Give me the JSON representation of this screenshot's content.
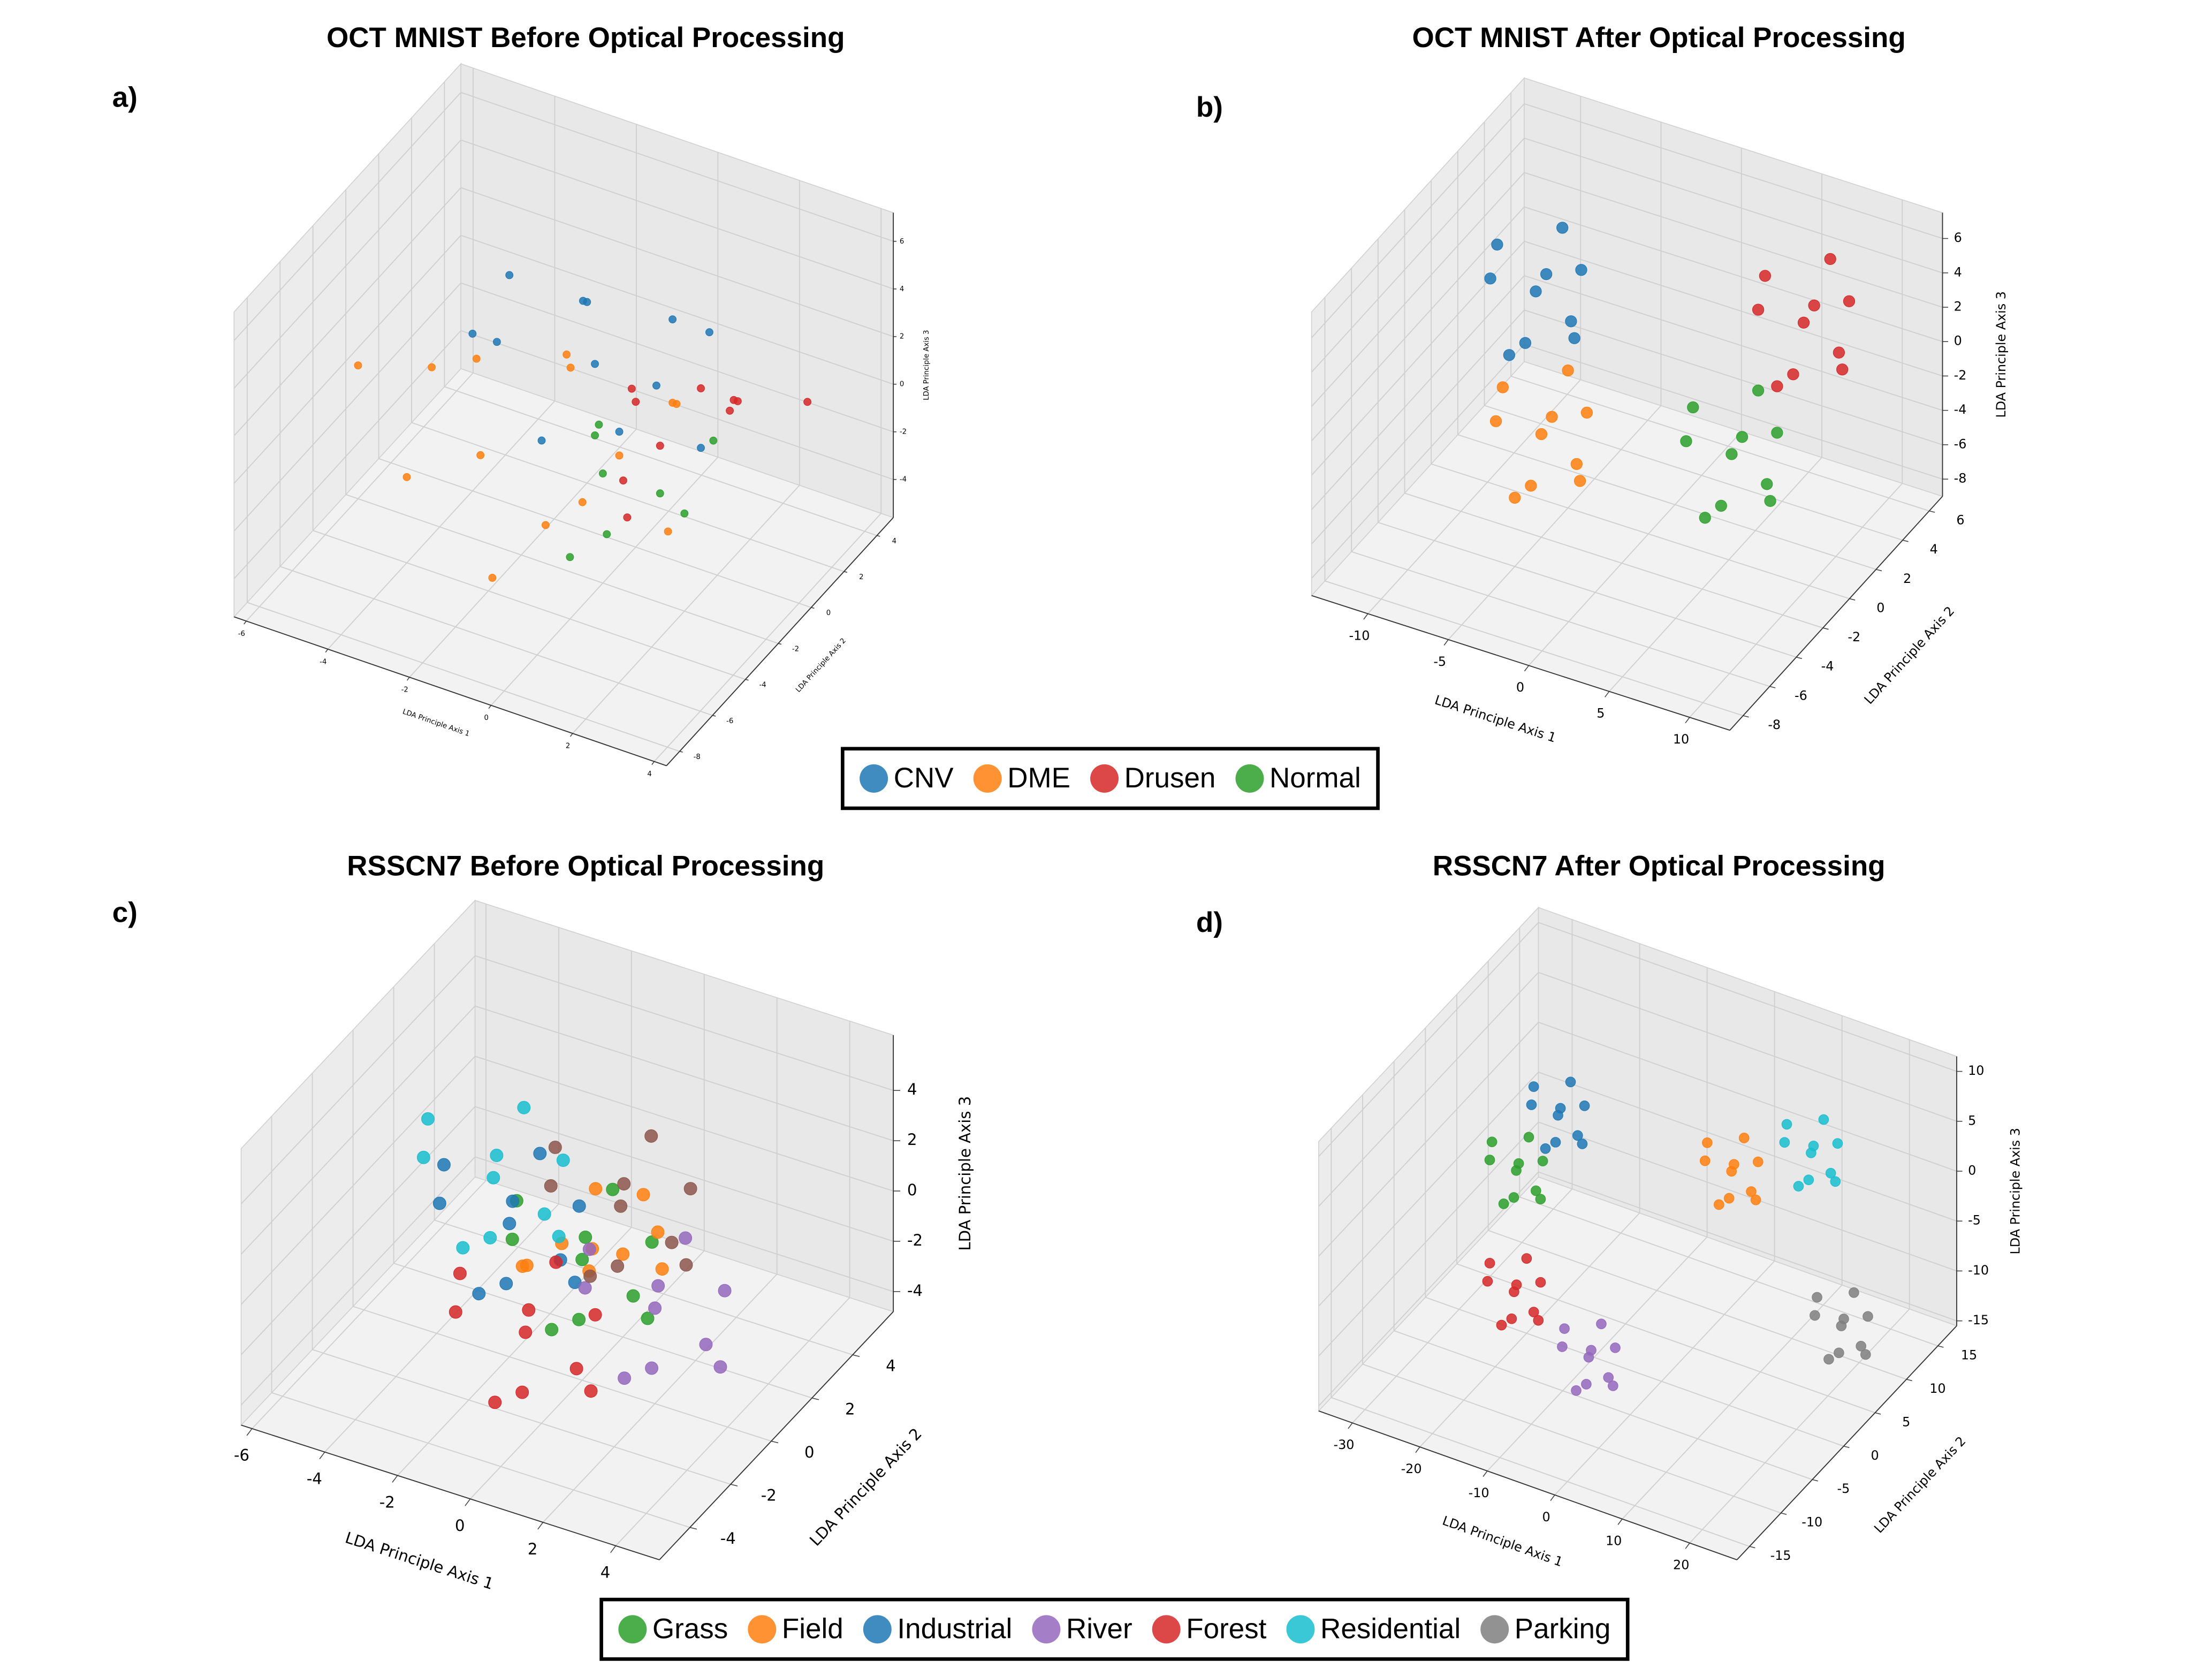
{
  "chart_data": [
    {
      "type": "scatter3d",
      "panel": "a)",
      "title": "OCT MNIST Before Optical Processing",
      "xlabel": "LDA Principle Axis 1",
      "ylabel": "LDA Principle Axis 2",
      "zlabel": "LDA Principle Axis 3",
      "xlim": [
        -6.3,
        4.3
      ],
      "ylim": [
        -8.8,
        5
      ],
      "zlim": [
        -5.6,
        7.2
      ],
      "xticks": [
        -6,
        -4,
        -2,
        0,
        2,
        4
      ],
      "yticks": [
        -8,
        -6,
        -4,
        -2,
        0,
        2,
        4
      ],
      "zticks": [
        -4,
        -2,
        0,
        2,
        4,
        6
      ],
      "grid": true,
      "series": [
        {
          "color": "#1f77b4",
          "x": [
            -3.5,
            -2,
            -1,
            0,
            1,
            -2.5,
            -1.5,
            0.5,
            -4,
            2,
            -0.5,
            -3
          ],
          "y": [
            1,
            2,
            0,
            -1,
            2,
            3,
            -2,
            1,
            0,
            -1,
            2.5,
            -1
          ],
          "z": [
            3,
            2,
            1.5,
            0,
            2.5,
            1,
            -0.5,
            3.5,
            1,
            0.5,
            -1,
            2
          ]
        },
        {
          "color": "#ff7f0e",
          "x": [
            -5,
            -3,
            -2,
            -1,
            0,
            1,
            -4,
            -2.5,
            -0.5,
            0.5,
            -3.5,
            2,
            -1.5,
            -6
          ],
          "y": [
            0,
            -2,
            1,
            -3,
            -1,
            0,
            -4,
            2,
            -2,
            1,
            -1,
            -3,
            -5,
            -2
          ],
          "z": [
            -1,
            -2,
            0,
            -3,
            -1,
            1,
            -2,
            -0.5,
            -2.5,
            0,
            1,
            -1.5,
            -4,
            0
          ]
        },
        {
          "color": "#d62728",
          "x": [
            0,
            1,
            2,
            1.5,
            0.5,
            2.5,
            3,
            1,
            -0.5,
            2
          ],
          "y": [
            0,
            -1,
            1,
            2,
            -2,
            0,
            3,
            -3,
            1,
            -1
          ],
          "z": [
            0.5,
            0,
            1,
            -0.5,
            -1,
            2,
            0,
            -1.5,
            0,
            3
          ]
        },
        {
          "color": "#2ca02c",
          "x": [
            0,
            1,
            -1,
            0.5,
            1.5,
            -0.5,
            2,
            0
          ],
          "y": [
            -2,
            -1,
            0,
            -3,
            1,
            -1,
            -2,
            -4
          ],
          "z": [
            -1,
            -2,
            -1.5,
            -2.5,
            -1,
            0,
            -1.5,
            -3
          ]
        }
      ]
    },
    {
      "type": "scatter3d",
      "panel": "b)",
      "title": "OCT MNIST After Optical Processing",
      "xlabel": "LDA Principle Axis 1",
      "ylabel": "LDA Principle Axis 2",
      "zlabel": "LDA Principle Axis 3",
      "xlim": [
        -13.5,
        12.5
      ],
      "ylim": [
        -9,
        7
      ],
      "zlim": [
        -9,
        7.5
      ],
      "xticks": [
        -10,
        -5,
        0,
        5,
        10
      ],
      "yticks": [
        -8,
        -6,
        -4,
        -2,
        0,
        2,
        4,
        6
      ],
      "zticks": [
        -8,
        -6,
        -4,
        -2,
        0,
        2,
        4,
        6
      ],
      "grid": true,
      "legend": "below",
      "series": [
        {
          "name": "CNV",
          "color": "#1f77b4",
          "x": [
            -7,
            -5,
            -9,
            -6,
            -8,
            -4.6,
            -9.4,
            -7,
            -7,
            -5.8
          ],
          "y": [
            0,
            1,
            -1,
            -2,
            2,
            0,
            0,
            2,
            -2,
            1.2
          ],
          "z": [
            3,
            4,
            4,
            2,
            2,
            1,
            5,
            5,
            1,
            0.6
          ]
        },
        {
          "name": "DME",
          "color": "#ff7f0e",
          "x": [
            -5,
            -3,
            -7,
            -4,
            -6,
            -2.6,
            -7.4,
            -5,
            -5,
            -3.8
          ],
          "y": [
            -2,
            -1,
            -3,
            -4,
            0,
            -2,
            -2,
            0,
            -4,
            -0.8
          ],
          "z": [
            -3,
            -2,
            -2,
            -4,
            -4,
            -5,
            -1,
            -1,
            -5,
            -5.4
          ]
        },
        {
          "name": "Drusen",
          "color": "#d62728",
          "x": [
            8,
            10,
            6,
            9,
            7,
            10.4,
            5.6,
            8,
            8,
            9.2
          ],
          "y": [
            2,
            3,
            1,
            0,
            4,
            2,
            2,
            4,
            0,
            3.2
          ],
          "z": [
            4,
            5,
            5,
            3,
            3,
            2,
            6,
            6,
            2,
            1.6
          ]
        },
        {
          "name": "Normal",
          "color": "#2ca02c",
          "x": [
            6,
            8,
            4,
            7,
            5,
            8.4,
            3.6,
            6,
            6,
            7.2
          ],
          "y": [
            -1,
            0,
            -2,
            -3,
            1,
            -1,
            -1,
            1,
            -3,
            0.2
          ],
          "z": [
            -1.7,
            -0.7,
            -0.7,
            -2.7,
            -2.7,
            -3.7,
            0.3,
            0.3,
            -3.7,
            -4.1
          ]
        }
      ]
    },
    {
      "type": "scatter3d",
      "panel": "c)",
      "title": "RSSCN7 Before Optical Processing",
      "xlabel": "LDA Principle Axis 1",
      "ylabel": "LDA Principle Axis 2",
      "zlabel": "LDA Principle Axis 3",
      "xlim": [
        -6.3,
        5.2
      ],
      "ylim": [
        -5.5,
        6
      ],
      "zlim": [
        -4.8,
        6.2
      ],
      "xticks": [
        -6,
        -4,
        -2,
        0,
        2,
        4
      ],
      "yticks": [
        -4,
        -2,
        0,
        2,
        4
      ],
      "zticks": [
        -4,
        -2,
        0,
        2,
        4
      ],
      "grid": true,
      "series": [
        {
          "color": "#2ca02c",
          "x": [
            0,
            1.5,
            -1.5,
            0.75,
            -0.75,
            1.8,
            -1.8,
            0,
            0,
            0.9
          ],
          "y": [
            0,
            0.75,
            -0.75,
            -1.5,
            1.5,
            0,
            0,
            1.5,
            -1.5,
            0.9
          ],
          "z": [
            0,
            0.75,
            0.75,
            -0.75,
            -0.75,
            -1.5,
            1.5,
            1.5,
            -1.5,
            -1.8
          ]
        },
        {
          "color": "#ff7f0e",
          "x": [
            0,
            1.5,
            -1.5,
            0.75,
            -0.75,
            1.8,
            -1.8,
            0,
            0,
            0.9
          ],
          "y": [
            0.5,
            1.25,
            -0.25,
            -1,
            2,
            0.5,
            0.5,
            2,
            -1,
            1.4
          ],
          "z": [
            0,
            -0.75,
            -0.75,
            0.75,
            0.75,
            1.5,
            -1.5,
            -1.5,
            1.5,
            1.8
          ]
        },
        {
          "color": "#1f77b4",
          "x": [
            -2,
            -0.5,
            -3.5,
            -1.25,
            -2.75,
            -0.2,
            -3.8,
            -2,
            -2,
            -1.1
          ],
          "y": [
            0,
            0.75,
            -0.75,
            -1.5,
            1.5,
            0,
            0,
            1.5,
            -1.5,
            0.9
          ],
          "z": [
            0.5,
            1.25,
            1.25,
            -0.25,
            -0.25,
            -1,
            2,
            2,
            -1,
            -1.3
          ]
        },
        {
          "color": "#9467bd",
          "x": [
            2,
            3.5,
            0.5,
            2.75,
            1.25,
            3.8,
            0.2,
            2,
            2,
            2.9
          ],
          "y": [
            0,
            0.75,
            -0.75,
            -1.5,
            1.5,
            0,
            0,
            1.5,
            -1.5,
            0.9
          ],
          "z": [
            -1,
            -0.25,
            -0.25,
            -1.75,
            -1.75,
            -2.5,
            0.5,
            0.5,
            -2.5,
            -2.8
          ]
        },
        {
          "color": "#d62728",
          "x": [
            -1,
            0.5,
            -2.5,
            -0.25,
            -1.75,
            0.8,
            -2.8,
            -1,
            -1,
            -0.1
          ],
          "y": [
            -1,
            -0.25,
            -1.75,
            -2.5,
            0.5,
            -1,
            -1,
            0.5,
            -2.5,
            -0.1
          ],
          "z": [
            -2.5,
            -1.75,
            -1.75,
            -3.25,
            -3.25,
            -4,
            -1,
            -1,
            -4,
            -4.3
          ]
        },
        {
          "color": "#17becf",
          "x": [
            -3,
            -1.5,
            -4.5,
            -2.25,
            -3.75,
            -1.2,
            -4.8,
            -3,
            -3,
            -2.1
          ],
          "y": [
            1,
            1.75,
            0.25,
            -0.5,
            2.5,
            1,
            1,
            2.5,
            -0.5,
            1.9
          ],
          "z": [
            1,
            1.75,
            1.75,
            0.25,
            0.25,
            -0.5,
            2.5,
            2.5,
            -0.5,
            -0.8
          ]
        },
        {
          "color": "#8c564b",
          "x": [
            0.5,
            2,
            -1,
            1.25,
            -0.25,
            2.3,
            -1.3,
            0.5,
            0.5,
            1.4
          ],
          "y": [
            1,
            1.75,
            0.25,
            -0.5,
            2.5,
            1,
            1,
            2.5,
            -0.5,
            1.9
          ],
          "z": [
            1.5,
            2.25,
            2.25,
            0.75,
            0.75,
            0,
            3,
            3,
            0,
            -0.3
          ]
        }
      ]
    },
    {
      "type": "scatter3d",
      "panel": "d)",
      "title": "RSSCN7 After Optical Processing",
      "xlabel": "LDA Principle Axis 1",
      "ylabel": "LDA Principle Axis 2",
      "zlabel": "LDA Principle Axis 3",
      "xlim": [
        -35,
        27
      ],
      "ylim": [
        -17,
        18
      ],
      "zlim": [
        -15.5,
        11.5
      ],
      "xticks": [
        -30,
        -20,
        -10,
        0,
        10,
        20
      ],
      "yticks": [
        -15,
        -10,
        -5,
        0,
        5,
        10,
        15
      ],
      "zticks": [
        -15,
        -10,
        -5,
        0,
        5,
        10
      ],
      "grid": true,
      "legend": "below",
      "series": [
        {
          "name": "Grass",
          "color": "#2ca02c",
          "x": [
            -22,
            -19,
            -25,
            -20.5,
            -23.5,
            -18.4,
            -25.6,
            -22,
            -22,
            -20.2
          ],
          "y": [
            0.5,
            1.5,
            -0.5,
            -1.5,
            2.5,
            0.5,
            0.5,
            2.5,
            -1.5,
            1.7
          ],
          "z": [
            0,
            1,
            1,
            -1,
            -1,
            -2,
            2,
            2,
            -2,
            -2.4
          ]
        },
        {
          "name": "Field",
          "color": "#ff7f0e",
          "x": [
            2,
            5,
            -1,
            3.5,
            0.5,
            5.6,
            -1.6,
            2,
            2,
            3.8
          ],
          "y": [
            9,
            10,
            8,
            7,
            11,
            9,
            9,
            11,
            7,
            10.2
          ],
          "z": [
            0,
            1,
            1,
            -1,
            -1,
            -2,
            2,
            2,
            -2,
            -2.4
          ]
        },
        {
          "name": "Industrial",
          "color": "#1f77b4",
          "x": [
            -20,
            -17,
            -23,
            -18.5,
            -21.5,
            -16.4,
            -23.6,
            -20,
            -20,
            -18.2
          ],
          "y": [
            5,
            6,
            4,
            3,
            7,
            5,
            5,
            7,
            3,
            6.2
          ],
          "z": [
            3,
            4,
            4,
            2,
            2,
            1,
            5,
            5,
            1,
            0.6
          ]
        },
        {
          "name": "River",
          "color": "#9467bd",
          "x": [
            -8,
            -5,
            -11,
            -6.5,
            -9.5,
            -4.4,
            -11.6,
            -8,
            -8,
            -6.2
          ],
          "y": [
            -3,
            -2,
            -4,
            -5,
            -1,
            -3,
            -3,
            -1,
            -5,
            -1.8
          ],
          "z": [
            -13,
            -12,
            -12,
            -14,
            -14,
            -15,
            -11,
            -11,
            -15,
            -15.4
          ]
        },
        {
          "name": "Forest",
          "color": "#d62728",
          "x": [
            -20,
            -17,
            -23,
            -18.5,
            -21.5,
            -16.4,
            -23.6,
            -20,
            -20,
            -18.2
          ],
          "y": [
            -2,
            -1,
            -3,
            -4,
            0,
            -2,
            -2,
            0,
            -4,
            -0.8
          ],
          "z": [
            -10,
            -9,
            -9,
            -11,
            -11,
            -12,
            -8,
            -8,
            -12,
            -12.4
          ]
        },
        {
          "name": "Residential",
          "color": "#17becf",
          "x": [
            11,
            14,
            8,
            12.5,
            9.5,
            14.6,
            7.4,
            11,
            11,
            12.8
          ],
          "y": [
            12,
            13,
            11,
            10,
            14,
            12,
            12,
            14,
            10,
            13.2
          ],
          "z": [
            2,
            3,
            3,
            1,
            1,
            0,
            4,
            4,
            0,
            -0.4
          ]
        },
        {
          "name": "Parking",
          "color": "#7f7f7f",
          "x": [
            22,
            25,
            19,
            23.5,
            20.5,
            25.6,
            18.4,
            22,
            22,
            23.8
          ],
          "y": [
            5,
            6,
            4,
            3,
            7,
            5,
            5,
            7,
            3,
            6.2
          ],
          "z": [
            -8,
            -7,
            -7,
            -9,
            -9,
            -10,
            -6,
            -6,
            -10,
            -10.4
          ]
        }
      ]
    }
  ]
}
